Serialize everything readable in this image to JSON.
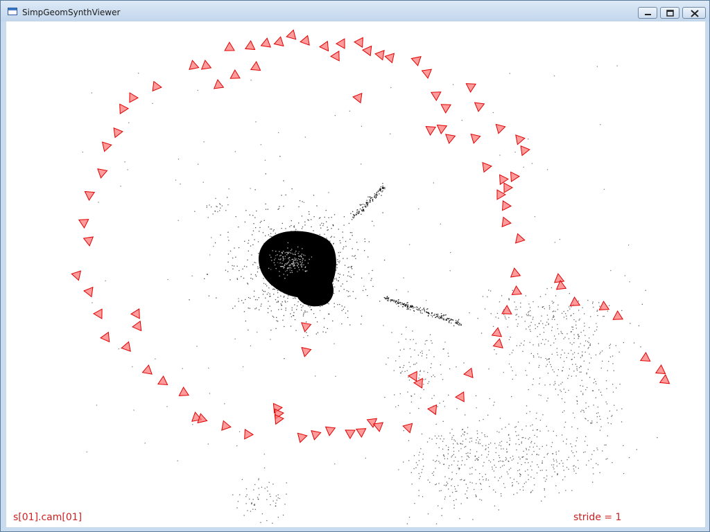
{
  "window": {
    "title": "SimpGeomSynthViewer",
    "icon": "app-window-icon",
    "controls": [
      "minimize-icon",
      "maximize-icon",
      "close-icon"
    ]
  },
  "viewport": {
    "overlay_left": "s[01].cam[01]",
    "overlay_right": "stride = 1",
    "background": "#ffffff",
    "camera_color": "#ff7a7a",
    "camera_edge_color": "#e00000",
    "point_color": "#000000"
  }
}
